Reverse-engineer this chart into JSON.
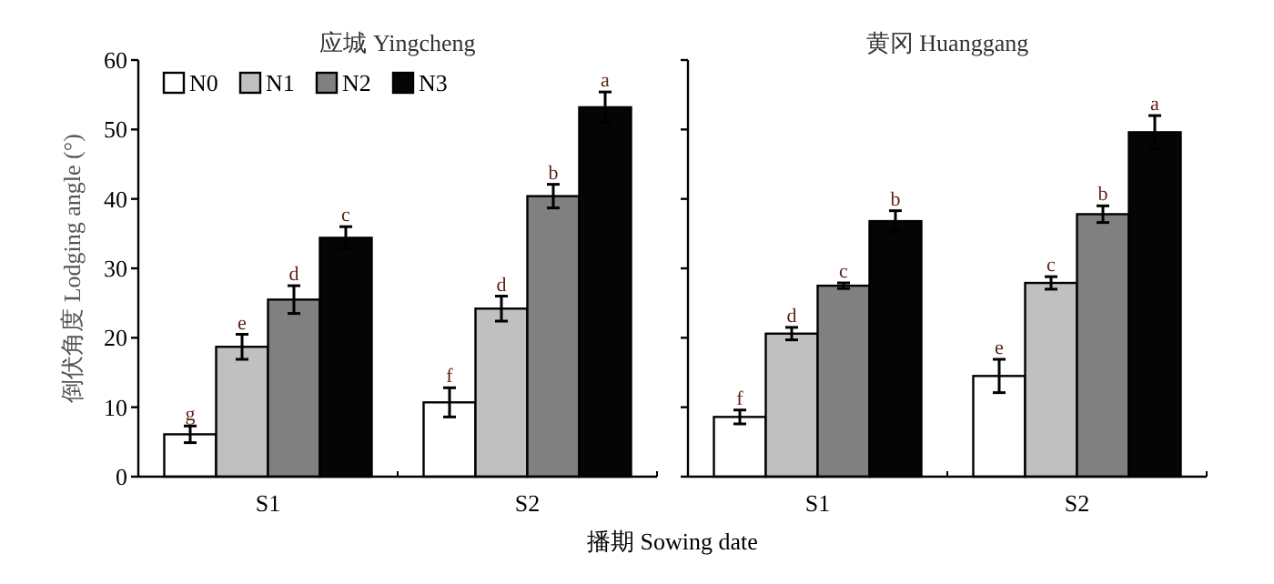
{
  "chart_data": [
    {
      "type": "bar",
      "title": "应城 Yingcheng",
      "ylabel": "倒伏角度 Lodging angle (°)",
      "xlabel": "播期 Sowing date",
      "categories": [
        "S1",
        "S2"
      ],
      "ylim": [
        0,
        60
      ],
      "yticks": [
        0,
        10,
        20,
        30,
        40,
        50,
        60
      ],
      "legend": "top left",
      "grid": false,
      "series": [
        {
          "name": "N0",
          "color": "#ffffff",
          "values": [
            6.1,
            10.7
          ],
          "errors": [
            1.2,
            2.1
          ],
          "value_labels": [
            "g",
            "f"
          ]
        },
        {
          "name": "N1",
          "color": "#c0c0c0",
          "values": [
            18.7,
            24.2
          ],
          "errors": [
            1.8,
            1.8
          ],
          "value_labels": [
            "e",
            "d"
          ]
        },
        {
          "name": "N2",
          "color": "#808080",
          "values": [
            25.5,
            40.4
          ],
          "errors": [
            2.0,
            1.7
          ],
          "value_labels": [
            "d",
            "b"
          ]
        },
        {
          "name": "N3",
          "color": "#050505",
          "values": [
            34.4,
            53.2
          ],
          "errors": [
            1.6,
            2.2
          ],
          "value_labels": [
            "c",
            "a"
          ]
        }
      ]
    },
    {
      "type": "bar",
      "title": "黄冈 Huanggang",
      "categories": [
        "S1",
        "S2"
      ],
      "ylim": [
        0,
        60
      ],
      "yticks": [
        0,
        10,
        20,
        30,
        40,
        50,
        60
      ],
      "tick_labels": "x",
      "grid": false,
      "series": [
        {
          "color": "#ffffff",
          "values": [
            8.6,
            14.5
          ],
          "errors": [
            1.0,
            2.4
          ],
          "value_labels": [
            "f",
            "e"
          ]
        },
        {
          "color": "#c0c0c0",
          "values": [
            20.6,
            27.9
          ],
          "errors": [
            0.9,
            0.9
          ],
          "value_labels": [
            "d",
            "c"
          ]
        },
        {
          "color": "#808080",
          "values": [
            27.5,
            37.8
          ],
          "errors": [
            0.4,
            1.2
          ],
          "value_labels": [
            "c",
            "b"
          ]
        },
        {
          "color": "#050505",
          "values": [
            36.8,
            49.6
          ],
          "errors": [
            1.5,
            2.4
          ],
          "value_labels": [
            "b",
            "a"
          ]
        }
      ]
    }
  ]
}
